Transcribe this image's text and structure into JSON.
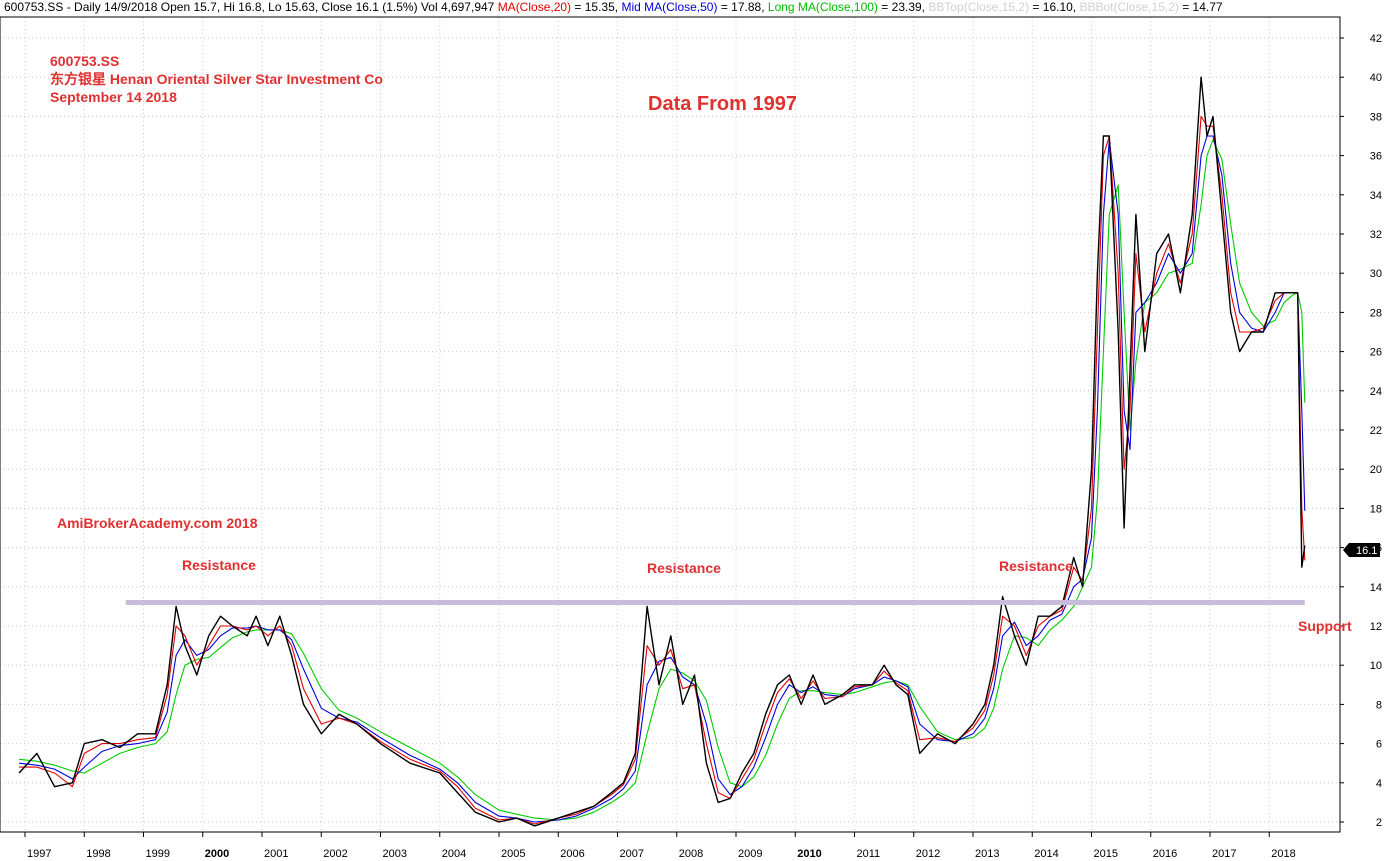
{
  "header": {
    "symbol_info": "600753.SS - Daily 14/9/2018 Open 15.7, Hi 16.8, Lo 15.63, Close 16.1 (1.5%) Vol 4,697,947",
    "ma20_label": "MA(Close,20)",
    "ma20_value": "= 15.35,",
    "ma50_label": "Mid MA(Close,50)",
    "ma50_value": "= 17.88,",
    "ma100_label": "Long MA(Close,100)",
    "ma100_value": "= 23.39,",
    "bbtop_label": "BBTop(Close,15,2)",
    "bbtop_value": "= 16.10,",
    "bbbot_label": "BBBot(Close,15,2)",
    "bbbot_value": "= 14.77"
  },
  "annotations": {
    "ticker": "600753.SS",
    "company": "东方银星 Henan Oriental Silver Star Investment Co",
    "date": "September 14 2018",
    "data_from": "Data From 1997",
    "watermark": "AmiBrokerAcademy.com   2018",
    "resistance_1": "Resistance",
    "resistance_2": "Resistance",
    "resistance_3": "Resistance",
    "support": "Support"
  },
  "price_marker": "16.1",
  "colors": {
    "price": "#000000",
    "ma20": "#e00000",
    "ma50": "#0000e0",
    "ma100": "#00cc00",
    "bollinger": "#d0d0d0",
    "support_resistance_line": "#c8bcdc",
    "annotation_text": "#e03030"
  },
  "chart_data": {
    "type": "line",
    "title": "",
    "xlabel": "",
    "ylabel": "",
    "ylim": [
      1,
      43
    ],
    "y_ticks": [
      2,
      4,
      6,
      8,
      10,
      12,
      14,
      16,
      18,
      20,
      22,
      24,
      26,
      28,
      30,
      32,
      34,
      36,
      38,
      40,
      42
    ],
    "x_ticks": [
      "1997",
      "1998",
      "1999",
      "2000",
      "2001",
      "2002",
      "2003",
      "2004",
      "2005",
      "2006",
      "2007",
      "2008",
      "2009",
      "2010",
      "2011",
      "2012",
      "2013",
      "2014",
      "2015",
      "2016",
      "2017",
      "2018"
    ],
    "x": [
      1996.9,
      1997.2,
      1997.5,
      1997.8,
      1998.0,
      1998.3,
      1998.6,
      1998.9,
      1999.2,
      1999.4,
      1999.55,
      1999.7,
      1999.9,
      2000.1,
      2000.3,
      2000.5,
      2000.75,
      2000.9,
      2001.1,
      2001.3,
      2001.5,
      2001.7,
      2002.0,
      2002.3,
      2002.6,
      2003.0,
      2003.5,
      2004.0,
      2004.3,
      2004.6,
      2005.0,
      2005.3,
      2005.6,
      2006.0,
      2006.3,
      2006.6,
      2006.9,
      2007.1,
      2007.3,
      2007.5,
      2007.7,
      2007.9,
      2008.1,
      2008.3,
      2008.5,
      2008.7,
      2008.9,
      2009.1,
      2009.3,
      2009.5,
      2009.7,
      2009.9,
      2010.1,
      2010.3,
      2010.5,
      2010.8,
      2011.0,
      2011.3,
      2011.5,
      2011.7,
      2011.9,
      2012.1,
      2012.4,
      2012.7,
      2013.0,
      2013.2,
      2013.35,
      2013.5,
      2013.7,
      2013.9,
      2014.1,
      2014.3,
      2014.5,
      2014.7,
      2014.85,
      2015.0,
      2015.1,
      2015.2,
      2015.3,
      2015.45,
      2015.55,
      2015.65,
      2015.75,
      2015.9,
      2016.1,
      2016.3,
      2016.5,
      2016.7,
      2016.85,
      2016.95,
      2017.05,
      2017.2,
      2017.35,
      2017.5,
      2017.7,
      2017.9,
      2018.1,
      2018.25,
      2018.4,
      2018.48,
      2018.55,
      2018.6
    ],
    "series": [
      {
        "values": [
          4.5,
          5.5,
          3.8,
          4.0,
          6.0,
          6.2,
          5.8,
          6.5,
          6.5,
          9.0,
          13.0,
          11.0,
          9.5,
          11.5,
          12.5,
          12.0,
          11.5,
          12.5,
          11.0,
          12.5,
          10.5,
          8.0,
          6.5,
          7.5,
          7.0,
          6.0,
          5.0,
          4.5,
          3.5,
          2.5,
          2.0,
          2.2,
          1.8,
          2.2,
          2.5,
          2.8,
          3.5,
          4.0,
          5.5,
          13.0,
          9.0,
          11.5,
          8.0,
          9.5,
          5.0,
          3.0,
          3.2,
          4.5,
          5.5,
          7.5,
          9.0,
          9.5,
          8.0,
          9.5,
          8.0,
          8.5,
          9.0,
          9.0,
          10.0,
          9.0,
          8.5,
          5.5,
          6.5,
          6.0,
          7.0,
          8.0,
          10.0,
          13.5,
          11.5,
          10.0,
          12.5,
          12.5,
          13.0,
          15.5,
          14.0,
          20.0,
          30.0,
          37.0,
          37.0,
          27.0,
          17.0,
          25.0,
          33.0,
          26.0,
          31.0,
          32.0,
          29.0,
          33.0,
          40.0,
          37.0,
          38.0,
          33.0,
          28.0,
          26.0,
          27.0,
          27.0,
          29.0,
          29.0,
          29.0,
          29.0,
          15.0,
          16.1
        ]
      },
      {
        "values": [
          4.8,
          4.8,
          4.5,
          3.8,
          5.5,
          6.0,
          6.0,
          6.2,
          6.3,
          8.5,
          12.0,
          11.5,
          10.0,
          11.0,
          12.0,
          12.0,
          11.8,
          12.0,
          11.5,
          12.0,
          11.0,
          8.8,
          7.0,
          7.3,
          7.0,
          6.1,
          5.2,
          4.6,
          3.8,
          2.7,
          2.1,
          2.2,
          1.9,
          2.2,
          2.4,
          2.8,
          3.4,
          3.9,
          5.2,
          11.0,
          10.0,
          10.8,
          8.8,
          9.0,
          6.0,
          3.5,
          3.2,
          4.2,
          5.2,
          7.0,
          8.6,
          9.3,
          8.3,
          9.2,
          8.3,
          8.4,
          8.9,
          9.0,
          9.7,
          9.1,
          8.7,
          6.2,
          6.3,
          6.1,
          6.8,
          7.7,
          9.5,
          12.5,
          12.0,
          10.5,
          12.0,
          12.5,
          12.8,
          15.0,
          14.3,
          18.0,
          27.0,
          36.0,
          37.0,
          30.0,
          20.0,
          23.0,
          31.0,
          27.0,
          30.0,
          31.5,
          29.5,
          32.0,
          38.0,
          37.5,
          37.5,
          34.0,
          29.0,
          27.0,
          27.0,
          27.2,
          28.6,
          29.0,
          29.0,
          29.0,
          18.0,
          15.35
        ]
      },
      {
        "values": [
          5.0,
          4.9,
          4.7,
          4.2,
          4.8,
          5.6,
          5.9,
          6.0,
          6.2,
          7.6,
          10.5,
          11.3,
          10.5,
          10.8,
          11.5,
          11.9,
          11.9,
          12.0,
          11.8,
          11.8,
          11.3,
          9.8,
          7.8,
          7.3,
          7.1,
          6.3,
          5.4,
          4.7,
          4.0,
          3.0,
          2.3,
          2.2,
          2.0,
          2.1,
          2.3,
          2.7,
          3.2,
          3.7,
          4.6,
          9.0,
          10.2,
          10.4,
          9.4,
          9.0,
          7.0,
          4.2,
          3.4,
          3.8,
          4.8,
          6.3,
          8.0,
          9.0,
          8.6,
          8.9,
          8.5,
          8.4,
          8.8,
          9.0,
          9.4,
          9.2,
          8.9,
          7.0,
          6.2,
          6.1,
          6.5,
          7.3,
          8.8,
          11.5,
          12.2,
          11.0,
          11.5,
          12.3,
          12.6,
          14.0,
          14.4,
          16.5,
          23.0,
          33.0,
          36.8,
          33.0,
          23.0,
          21.0,
          28.0,
          28.5,
          29.5,
          31.0,
          30.0,
          31.0,
          36.0,
          37.0,
          37.0,
          35.0,
          30.5,
          28.0,
          27.2,
          27.0,
          28.0,
          29.0,
          29.0,
          29.0,
          23.0,
          17.88
        ]
      },
      {
        "values": [
          5.2,
          5.1,
          4.9,
          4.6,
          4.5,
          5.0,
          5.5,
          5.8,
          6.0,
          6.6,
          8.5,
          10.0,
          10.3,
          10.4,
          10.9,
          11.4,
          11.7,
          11.8,
          11.8,
          11.8,
          11.6,
          10.6,
          8.8,
          7.7,
          7.3,
          6.6,
          5.8,
          5.0,
          4.3,
          3.4,
          2.6,
          2.4,
          2.2,
          2.1,
          2.2,
          2.5,
          3.0,
          3.4,
          4.0,
          6.5,
          8.8,
          9.8,
          9.6,
          9.2,
          8.2,
          5.8,
          4.0,
          3.8,
          4.3,
          5.4,
          7.0,
          8.3,
          8.7,
          8.7,
          8.6,
          8.5,
          8.6,
          8.9,
          9.1,
          9.2,
          9.0,
          7.9,
          6.6,
          6.2,
          6.3,
          6.8,
          7.8,
          9.8,
          11.5,
          11.4,
          11.0,
          11.8,
          12.3,
          13.0,
          14.0,
          15.0,
          18.5,
          26.0,
          33.0,
          34.5,
          28.0,
          22.0,
          25.5,
          28.5,
          29.0,
          30.0,
          30.2,
          30.5,
          33.5,
          36.0,
          36.8,
          35.8,
          32.5,
          29.5,
          28.0,
          27.3,
          27.6,
          28.5,
          28.9,
          29.0,
          28.0,
          23.39
        ]
      }
    ],
    "support_resistance_level": 13.2,
    "support_resistance_range": [
      1998.7,
      2018.6
    ]
  }
}
